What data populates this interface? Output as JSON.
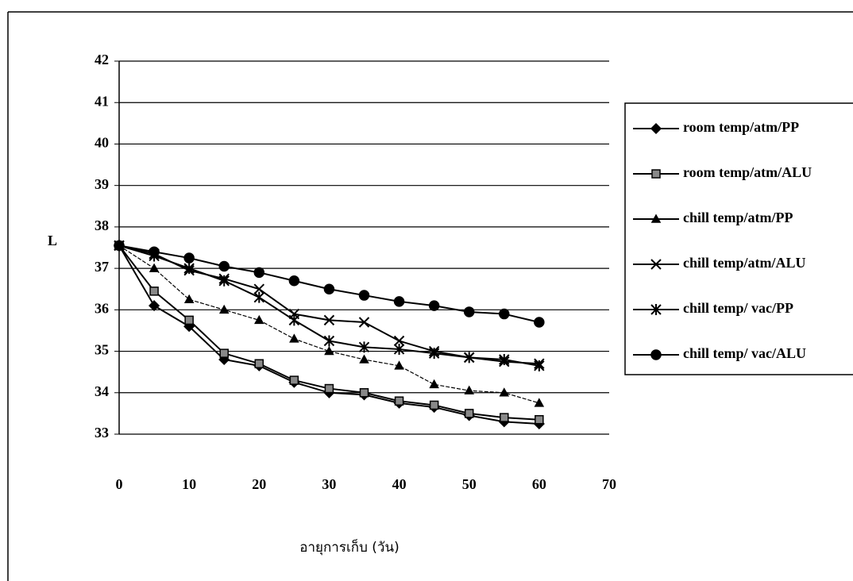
{
  "chart_data": {
    "type": "line",
    "x_label": "อายุการเก็บ (วัน)",
    "y_label": "L",
    "x": [
      0,
      5,
      10,
      15,
      20,
      25,
      30,
      35,
      40,
      45,
      50,
      55,
      60
    ],
    "xlim": [
      0,
      70
    ],
    "xticks": [
      0,
      10,
      20,
      30,
      40,
      50,
      60,
      70
    ],
    "ylim": [
      33,
      42
    ],
    "yticks": [
      33,
      34,
      35,
      36,
      37,
      38,
      39,
      40,
      41,
      42
    ],
    "grid": true,
    "legend": "right",
    "series": [
      {
        "name": "room temp/atm/PP",
        "color": "#000000",
        "marker": "diamond",
        "values": [
          37.55,
          36.1,
          35.6,
          34.8,
          34.65,
          34.25,
          34.0,
          33.95,
          33.75,
          33.65,
          33.45,
          33.3,
          33.25
        ]
      },
      {
        "name": "room temp/atm/ALU",
        "color": "#000000",
        "marker": "square",
        "values": [
          37.55,
          36.45,
          35.75,
          34.95,
          34.7,
          34.3,
          34.1,
          34.0,
          33.8,
          33.7,
          33.5,
          33.4,
          33.35
        ]
      },
      {
        "name": "chill temp/atm/PP",
        "color": "#000000",
        "marker": "triangle",
        "values": [
          37.55,
          37.0,
          36.25,
          36.0,
          35.75,
          35.3,
          35.0,
          34.8,
          34.65,
          34.2,
          34.05,
          34.0,
          33.75
        ]
      },
      {
        "name": "chill temp/atm/ALU",
        "color": "#000000",
        "marker": "x",
        "values": [
          37.55,
          37.35,
          36.95,
          36.75,
          36.5,
          35.9,
          35.75,
          35.7,
          35.25,
          35.0,
          34.85,
          34.75,
          34.7
        ]
      },
      {
        "name": "chill temp/ vac/PP",
        "color": "#000000",
        "marker": "star",
        "values": [
          37.55,
          37.3,
          37.0,
          36.7,
          36.3,
          35.75,
          35.25,
          35.1,
          35.05,
          34.95,
          34.85,
          34.8,
          34.65
        ]
      },
      {
        "name": "chill temp/ vac/ALU",
        "color": "#000000",
        "marker": "circle",
        "values": [
          37.55,
          37.4,
          37.25,
          37.05,
          36.9,
          36.7,
          36.5,
          36.35,
          36.2,
          36.1,
          35.95,
          35.9,
          35.7
        ]
      }
    ]
  }
}
